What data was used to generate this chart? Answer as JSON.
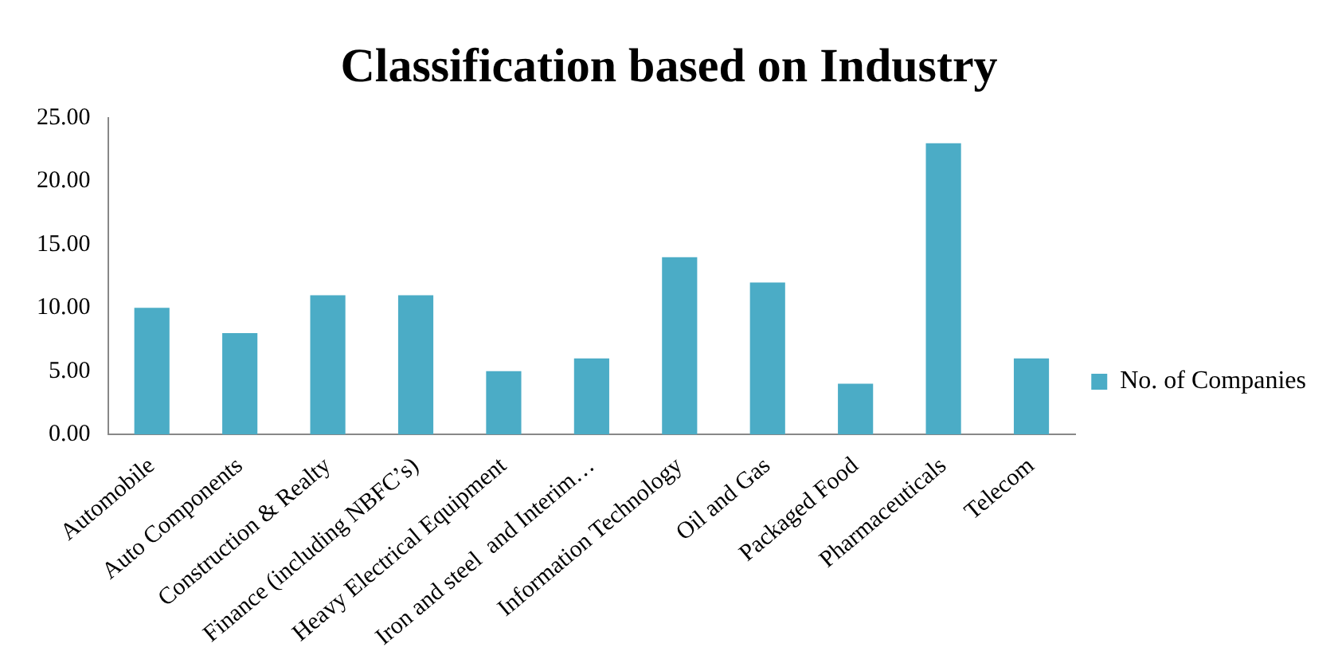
{
  "chart_data": {
    "type": "bar",
    "title": "Classification based on Industry",
    "categories": [
      "Automobile",
      "Auto Components",
      "Construction & Realty",
      "Finance (including NBFC’s)",
      "Heavy Electrical Equipment",
      "Iron and steel  and Interim…",
      "Information Technology",
      "Oil and Gas",
      "Packaged Food",
      "Pharmaceuticals",
      "Telecom"
    ],
    "series": [
      {
        "name": "No. of Companies",
        "color": "#4bacc6",
        "values": [
          10,
          8,
          11,
          11,
          5,
          6,
          14,
          12,
          4,
          23,
          6
        ]
      }
    ],
    "ylim": [
      0,
      25
    ],
    "yticks": [
      {
        "value": 0,
        "label": "0.00"
      },
      {
        "value": 5,
        "label": "5.00"
      },
      {
        "value": 10,
        "label": "10.00"
      },
      {
        "value": 15,
        "label": "15.00"
      },
      {
        "value": 20,
        "label": "20.00"
      },
      {
        "value": 25,
        "label": "25.00"
      }
    ],
    "grid": false,
    "legend": "right"
  }
}
